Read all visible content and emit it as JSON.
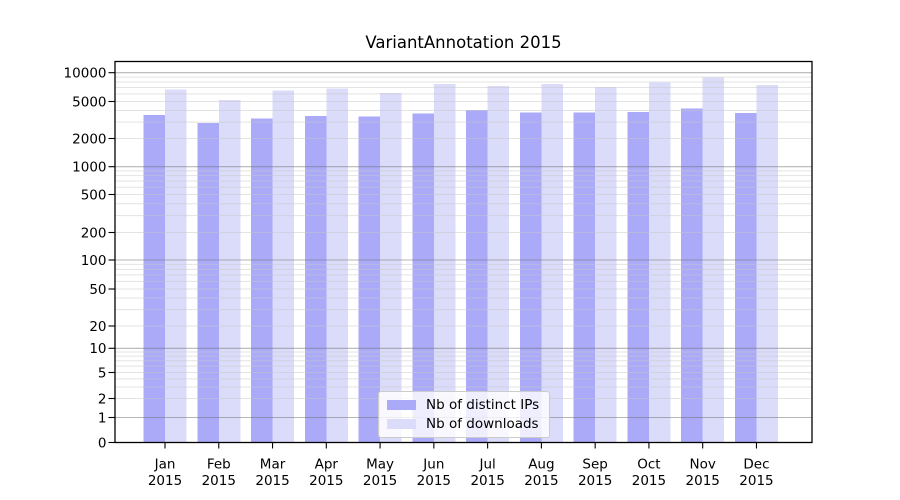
{
  "chart_data": {
    "type": "bar",
    "title": "VariantAnnotation 2015",
    "year": "2015",
    "categories": [
      "Jan",
      "Feb",
      "Mar",
      "Apr",
      "May",
      "Jun",
      "Jul",
      "Aug",
      "Sep",
      "Oct",
      "Nov",
      "Dec"
    ],
    "series": [
      {
        "name": "Nb of distinct IPs",
        "color": "#aaaaf8",
        "values": [
          3600,
          2950,
          3300,
          3500,
          3450,
          3700,
          4050,
          3800,
          3800,
          3850,
          4200,
          3750
        ]
      },
      {
        "name": "Nb of downloads",
        "color": "#dbdbfa",
        "values": [
          6700,
          5200,
          6500,
          6800,
          6100,
          7600,
          7300,
          7600,
          7100,
          7900,
          8900,
          7400
        ]
      }
    ],
    "xlabel": "",
    "ylabel": "",
    "yscale": "symlog",
    "yticks": [
      0,
      1,
      2,
      5,
      10,
      20,
      50,
      100,
      200,
      500,
      1000,
      2000,
      5000,
      10000
    ],
    "ylim": [
      0,
      13000
    ],
    "grid": "on",
    "legend_position": "lower-center"
  }
}
